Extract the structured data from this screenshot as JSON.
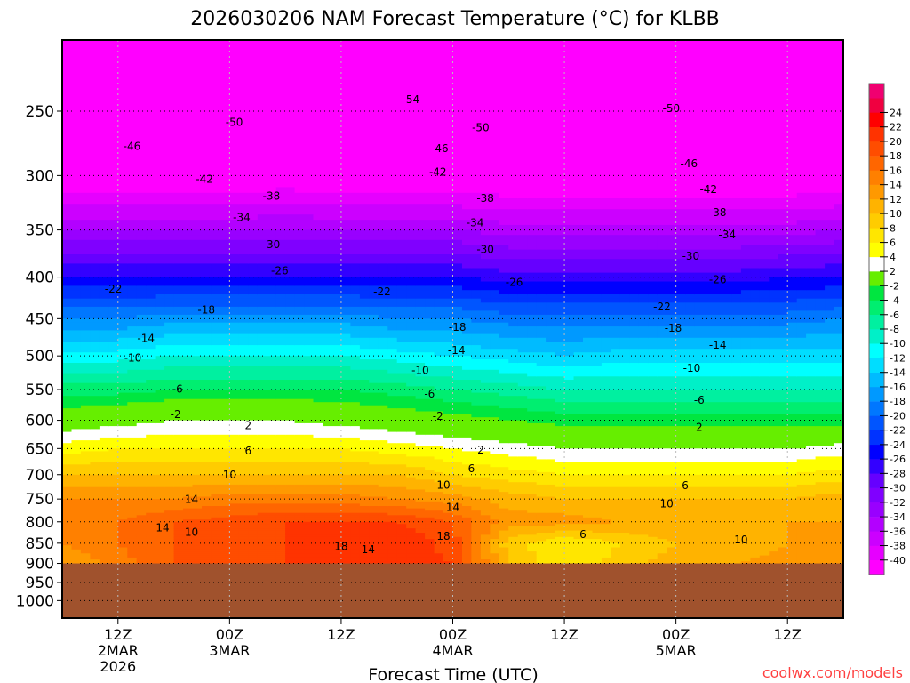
{
  "chart_data": {
    "type": "heatmap",
    "title": "2026030206 NAM Forecast Temperature (°C) for KLBB",
    "xlabel": "Forecast Time (UTC)",
    "ylabel": "Pressure (hPa)",
    "credit": "coolwx.com/models",
    "x_hours": [
      0,
      6,
      12,
      18,
      24,
      30,
      36,
      42,
      48,
      54,
      60,
      66,
      72,
      78,
      84
    ],
    "xlim": [
      0,
      84
    ],
    "x_ticks": [
      {
        "hour": 6,
        "lines": [
          "12Z",
          "2MAR",
          "2026"
        ]
      },
      {
        "hour": 18,
        "lines": [
          "00Z",
          "3MAR"
        ]
      },
      {
        "hour": 30,
        "lines": [
          "12Z"
        ]
      },
      {
        "hour": 42,
        "lines": [
          "00Z",
          "4MAR"
        ]
      },
      {
        "hour": 54,
        "lines": [
          "12Z"
        ]
      },
      {
        "hour": 66,
        "lines": [
          "00Z",
          "5MAR"
        ]
      },
      {
        "hour": 78,
        "lines": [
          "12Z"
        ]
      }
    ],
    "y_ticks": [
      250,
      300,
      350,
      400,
      450,
      500,
      550,
      600,
      650,
      700,
      750,
      800,
      850,
      900,
      950,
      1000
    ],
    "ylim": [
      204,
      1049
    ],
    "surface_pressure": 900,
    "pressure_levels": [
      200,
      250,
      300,
      350,
      400,
      450,
      500,
      550,
      600,
      650,
      700,
      750,
      800,
      850,
      900
    ],
    "temperature": [
      [
        -56,
        -57,
        -56,
        -56,
        -55,
        -56,
        -56,
        -55,
        -56,
        -56,
        -55,
        -55,
        -54,
        -55,
        -55
      ],
      [
        -50,
        -50,
        -50,
        -51,
        -50,
        -50,
        -50,
        -50,
        -50,
        -51,
        -51,
        -50,
        -50,
        -50,
        -50
      ],
      [
        -43,
        -43,
        -43,
        -43,
        -42,
        -43,
        -43,
        -43,
        -43,
        -44,
        -44,
        -44,
        -44,
        -43,
        -43
      ],
      [
        -34,
        -34,
        -34,
        -34,
        -34,
        -34,
        -34,
        -34,
        -35,
        -35,
        -35,
        -35,
        -35,
        -35,
        -34
      ],
      [
        -26,
        -26,
        -26,
        -26,
        -26,
        -26,
        -26,
        -26,
        -27,
        -27,
        -27,
        -27,
        -27,
        -26,
        -26
      ],
      [
        -18,
        -18,
        -17,
        -17,
        -17,
        -17,
        -18,
        -18,
        -19,
        -19,
        -19,
        -19,
        -19,
        -19,
        -18
      ],
      [
        -11,
        -11,
        -10,
        -10,
        -10,
        -10,
        -11,
        -12,
        -13,
        -14,
        -13,
        -13,
        -13,
        -13,
        -13
      ],
      [
        -5,
        -5,
        -4,
        -4,
        -4,
        -4,
        -5,
        -6,
        -7,
        -8,
        -8,
        -8,
        -8,
        -8,
        -8
      ],
      [
        0,
        1,
        2,
        2,
        2,
        1,
        0,
        -1,
        -2,
        -3,
        -3,
        -3,
        -3,
        -3,
        -3
      ],
      [
        5,
        6,
        6,
        6,
        6,
        6,
        5,
        4,
        3,
        2,
        2,
        2,
        2,
        2,
        3
      ],
      [
        10,
        10,
        10,
        10,
        10,
        10,
        10,
        8,
        7,
        6,
        6,
        6,
        6,
        6,
        7
      ],
      [
        14,
        14,
        14,
        15,
        15,
        15,
        14,
        13,
        11,
        10,
        10,
        10,
        10,
        10,
        11
      ],
      [
        14,
        16,
        18,
        19,
        20,
        20,
        20,
        18,
        13,
        13,
        12,
        12,
        11,
        12,
        12
      ],
      [
        14,
        16,
        18,
        19,
        20,
        21,
        22,
        19,
        9,
        6,
        8,
        10,
        10,
        12,
        13
      ],
      [
        12,
        15,
        18,
        19,
        20,
        21,
        21,
        20,
        10,
        6,
        9,
        11,
        12,
        13,
        14
      ]
    ],
    "contour_labels": [
      {
        "v": "-54",
        "h": 37.5,
        "p": 242
      },
      {
        "v": "-50",
        "h": 18.5,
        "p": 258
      },
      {
        "v": "-50",
        "h": 45,
        "p": 262
      },
      {
        "v": "-50",
        "h": 65.5,
        "p": 248
      },
      {
        "v": "-46",
        "h": 7.5,
        "p": 276
      },
      {
        "v": "-46",
        "h": 40.6,
        "p": 278
      },
      {
        "v": "-46",
        "h": 67.4,
        "p": 290
      },
      {
        "v": "-42",
        "h": 15.3,
        "p": 303
      },
      {
        "v": "-42",
        "h": 40.4,
        "p": 297
      },
      {
        "v": "-42",
        "h": 69.5,
        "p": 312
      },
      {
        "v": "-38",
        "h": 22.5,
        "p": 318
      },
      {
        "v": "-38",
        "h": 45.5,
        "p": 320
      },
      {
        "v": "-38",
        "h": 70.5,
        "p": 333
      },
      {
        "v": "-34",
        "h": 19.3,
        "p": 338
      },
      {
        "v": "-34",
        "h": 44.4,
        "p": 343
      },
      {
        "v": "-34",
        "h": 71.5,
        "p": 355
      },
      {
        "v": "-30",
        "h": 22.5,
        "p": 365
      },
      {
        "v": "-30",
        "h": 45.5,
        "p": 370
      },
      {
        "v": "-30",
        "h": 67.6,
        "p": 377
      },
      {
        "v": "-26",
        "h": 23.4,
        "p": 393
      },
      {
        "v": "-26",
        "h": 48.6,
        "p": 406
      },
      {
        "v": "-26",
        "h": 70.5,
        "p": 403
      },
      {
        "v": "-22",
        "h": 5.5,
        "p": 414
      },
      {
        "v": "-22",
        "h": 34.4,
        "p": 417
      },
      {
        "v": "-22",
        "h": 64.5,
        "p": 435
      },
      {
        "v": "-18",
        "h": 15.5,
        "p": 439
      },
      {
        "v": "-18",
        "h": 42.5,
        "p": 461
      },
      {
        "v": "-18",
        "h": 65.7,
        "p": 462
      },
      {
        "v": "-14",
        "h": 9,
        "p": 476
      },
      {
        "v": "-14",
        "h": 42.4,
        "p": 492
      },
      {
        "v": "-14",
        "h": 70.5,
        "p": 485
      },
      {
        "v": "-10",
        "h": 7.6,
        "p": 503
      },
      {
        "v": "-10",
        "h": 38.5,
        "p": 521
      },
      {
        "v": "-10",
        "h": 67.7,
        "p": 518
      },
      {
        "v": "-6",
        "h": 12.4,
        "p": 549
      },
      {
        "v": "-6",
        "h": 39.5,
        "p": 557
      },
      {
        "v": "-6",
        "h": 68.5,
        "p": 567
      },
      {
        "v": "-2",
        "h": 12.2,
        "p": 590
      },
      {
        "v": "-2",
        "h": 40.4,
        "p": 593
      },
      {
        "v": "2",
        "h": 20,
        "p": 609
      },
      {
        "v": "2",
        "h": 45,
        "p": 653
      },
      {
        "v": "2",
        "h": 68.5,
        "p": 612
      },
      {
        "v": "6",
        "h": 20,
        "p": 654
      },
      {
        "v": "6",
        "h": 44,
        "p": 688
      },
      {
        "v": "6",
        "h": 67,
        "p": 722
      },
      {
        "v": "10",
        "h": 18,
        "p": 700
      },
      {
        "v": "10",
        "h": 41,
        "p": 721
      },
      {
        "v": "10",
        "h": 65,
        "p": 760
      },
      {
        "v": "14",
        "h": 13.9,
        "p": 751
      },
      {
        "v": "14",
        "h": 42,
        "p": 768
      },
      {
        "v": "14",
        "h": 10.8,
        "p": 814
      },
      {
        "v": "10",
        "h": 13.9,
        "p": 824
      },
      {
        "v": "18",
        "h": 30,
        "p": 858
      },
      {
        "v": "14",
        "h": 32.9,
        "p": 866
      },
      {
        "v": "18",
        "h": 41,
        "p": 833
      },
      {
        "v": "6",
        "h": 56,
        "p": 829
      },
      {
        "v": "10",
        "h": 73,
        "p": 842
      }
    ],
    "colorbar": {
      "edges": [
        -40,
        -38,
        -36,
        -34,
        -32,
        -30,
        -28,
        -26,
        -24,
        -22,
        -20,
        -18,
        -16,
        -14,
        -12,
        -10,
        -8,
        -6,
        -4,
        -2,
        2,
        4,
        6,
        8,
        10,
        12,
        14,
        16,
        18,
        20,
        22,
        24
      ],
      "colors": [
        "#ff00ff",
        "#e600ff",
        "#cc00ff",
        "#b300ff",
        "#9900ff",
        "#8000ff",
        "#6600ff",
        "#3300ff",
        "#0000ff",
        "#0033ff",
        "#0055ff",
        "#0077ff",
        "#0099ff",
        "#00bbff",
        "#00ddff",
        "#00ffff",
        "#00f0c8",
        "#00f0a0",
        "#00ee70",
        "#00e640",
        "#66ee00",
        "#ffffff",
        "#ffff00",
        "#ffe600",
        "#ffcc00",
        "#ffb300",
        "#ff9900",
        "#ff8000",
        "#ff6600",
        "#ff4d00",
        "#ff3300",
        "#ff0000",
        "#f00040",
        "#f00070"
      ]
    },
    "ground_color": "#a0522d",
    "credit_color": "#ff4040"
  }
}
